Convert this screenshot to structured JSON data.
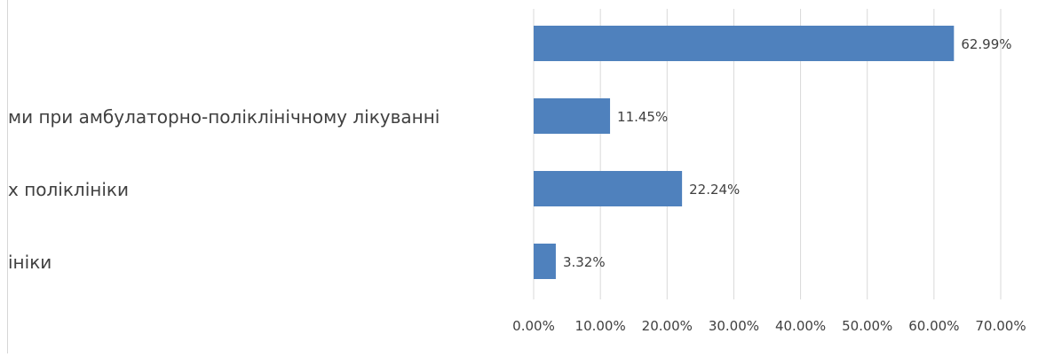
{
  "chart_data": {
    "type": "bar",
    "orientation": "horizontal",
    "categories": [
      "",
      "ми при амбулаторно-поліклінічному лікуванні",
      "х поліклініки",
      "ініки"
    ],
    "values": [
      62.99,
      11.45,
      22.24,
      3.32
    ],
    "data_labels": [
      "62.99%",
      "11.45%",
      "22.24%",
      "3.32%"
    ],
    "xlim": [
      0,
      70
    ],
    "x_ticks": [
      0,
      10,
      20,
      30,
      40,
      50,
      60,
      70
    ],
    "x_tick_labels": [
      "0.00%",
      "10.00%",
      "20.00%",
      "30.00%",
      "40.00%",
      "50.00%",
      "60.00%",
      "70.00%"
    ],
    "grid": true,
    "legend": "none",
    "bar_color": "#4f81bd",
    "grid_color": "#d9d9d9",
    "label_color": "#404040"
  }
}
